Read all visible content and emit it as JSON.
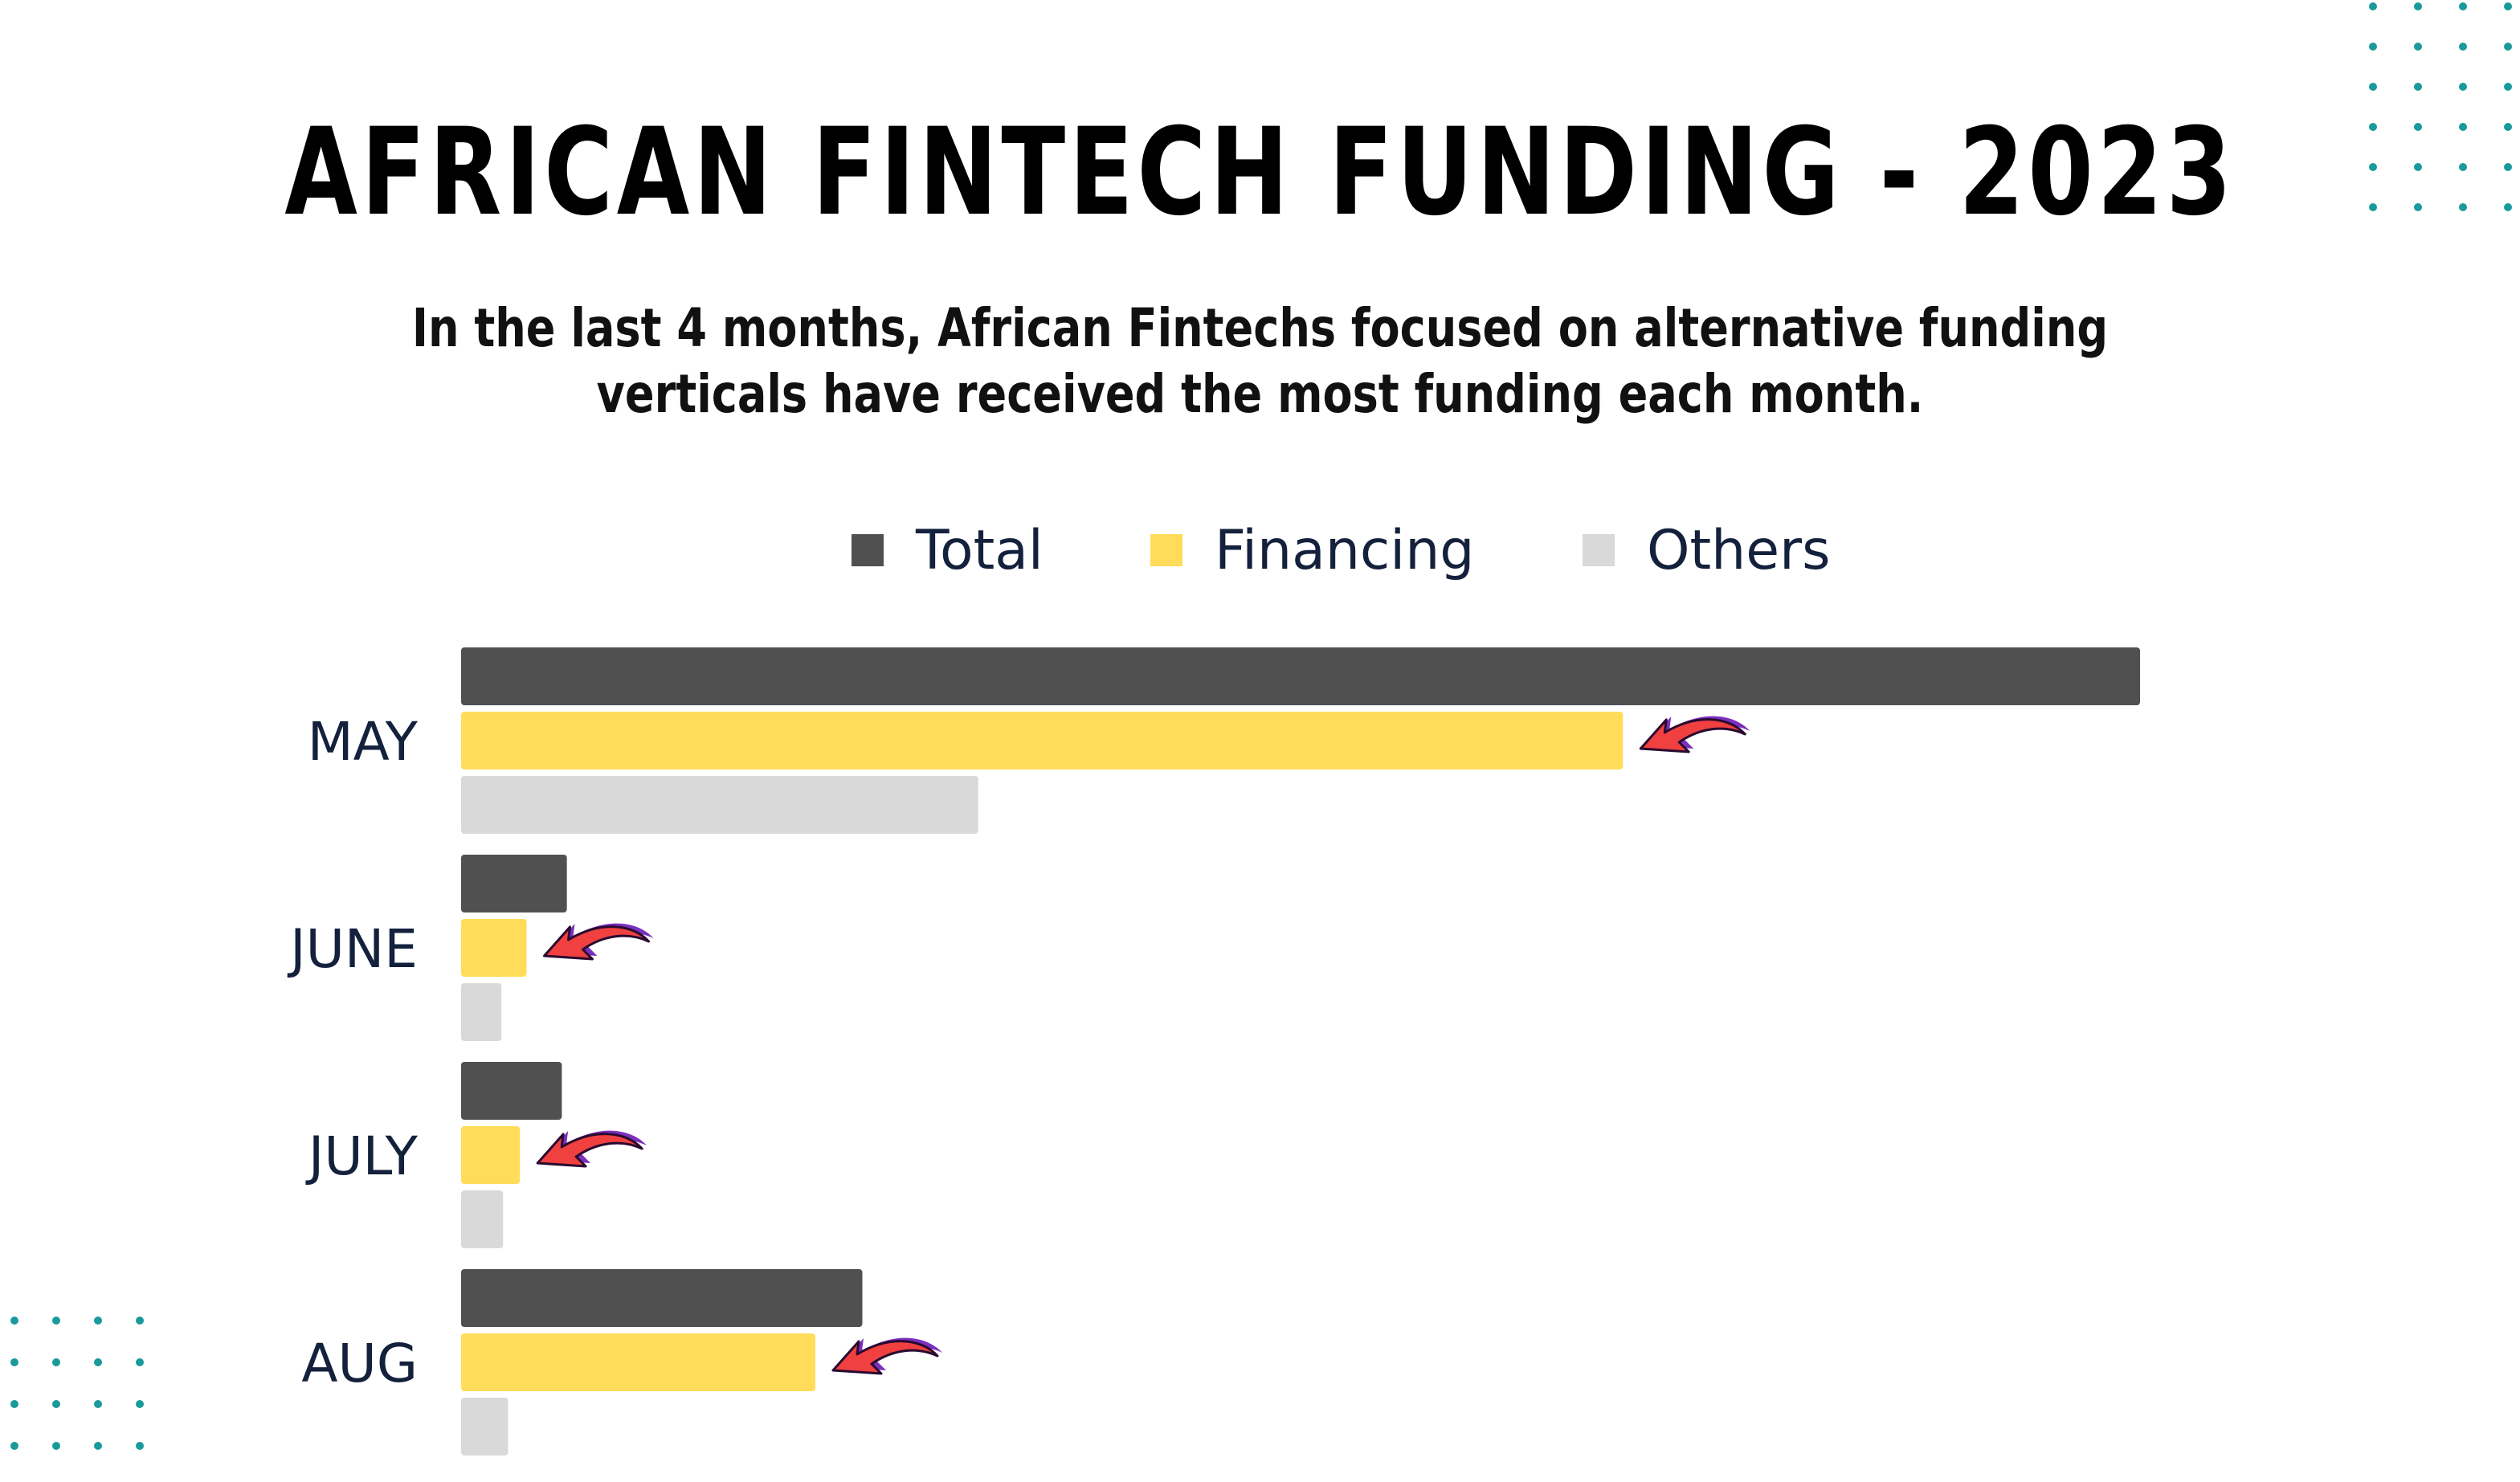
{
  "title": "AFRICAN FINTECH FUNDING - 2023",
  "subtitle_line1": "In the last 4 months, African Fintechs focused on alternative funding",
  "subtitle_line2": "verticals have received the most funding each month.",
  "colors": {
    "total": "#505050",
    "financing": "#ffdc5a",
    "others": "#d9d9d9",
    "arrow": "#f04040",
    "arrow_outline": "#7b2fbf",
    "dots": "#1a9a9a",
    "category_label": "#14213d"
  },
  "chart_data": {
    "type": "bar",
    "orientation": "horizontal",
    "categories": [
      "MAY",
      "JUNE",
      "JULY",
      "AUG"
    ],
    "series": [
      {
        "name": "Total",
        "values": [
          100,
          6.3,
          6.0,
          23.9
        ]
      },
      {
        "name": "Financing",
        "values": [
          69.2,
          3.9,
          3.5,
          21.1
        ]
      },
      {
        "name": "Others",
        "values": [
          30.8,
          2.4,
          2.5,
          2.8
        ]
      }
    ],
    "legend_position": "top",
    "grid": false,
    "xlim": [
      0,
      100
    ],
    "annotations": "curved arrow pointing at each Financing bar",
    "arrow_icon": "curved-arrow-icon"
  }
}
